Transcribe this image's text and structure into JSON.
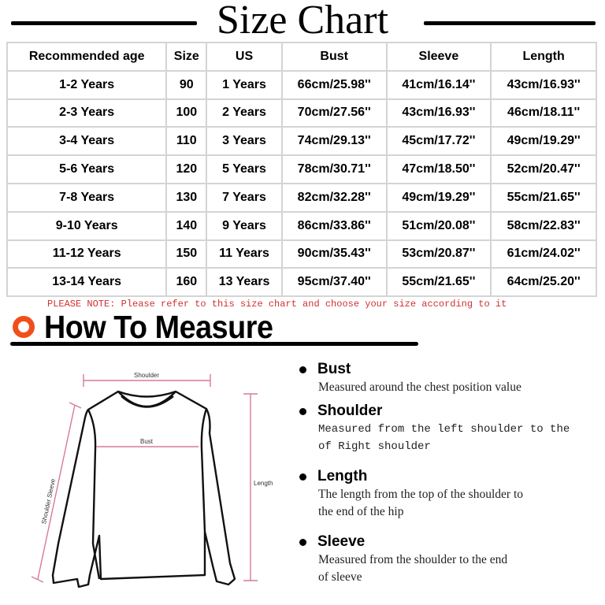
{
  "title": "Size Chart",
  "table": {
    "headers": [
      "Recommended age",
      "Size",
      "US",
      "Bust",
      "Sleeve",
      "Length"
    ],
    "rows": [
      [
        "1-2 Years",
        "90",
        "1 Years",
        "66cm/25.98''",
        "41cm/16.14''",
        "43cm/16.93''"
      ],
      [
        "2-3 Years",
        "100",
        "2 Years",
        "70cm/27.56''",
        "43cm/16.93''",
        "46cm/18.11''"
      ],
      [
        "3-4 Years",
        "110",
        "3 Years",
        "74cm/29.13''",
        "45cm/17.72''",
        "49cm/19.29''"
      ],
      [
        "5-6 Years",
        "120",
        "5 Years",
        "78cm/30.71''",
        "47cm/18.50''",
        "52cm/20.47''"
      ],
      [
        "7-8 Years",
        "130",
        "7 Years",
        "82cm/32.28''",
        "49cm/19.29''",
        "55cm/21.65''"
      ],
      [
        "9-10 Years",
        "140",
        "9 Years",
        "86cm/33.86''",
        "51cm/20.08''",
        "58cm/22.83''"
      ],
      [
        "11-12 Years",
        "150",
        "11 Years",
        "90cm/35.43''",
        "53cm/20.87''",
        "61cm/24.02''"
      ],
      [
        "13-14 Years",
        "160",
        "13 Years",
        "95cm/37.40''",
        "55cm/21.65''",
        "64cm/25.20''"
      ]
    ]
  },
  "note": "PLEASE NOTE: Please refer to this size chart and choose your size according to it",
  "how_to_measure": {
    "title": "How To Measure",
    "accent_color": "#f04f1c",
    "diagram_labels": {
      "shoulder": "Shoulder",
      "bust": "Bust",
      "length": "Length",
      "sleeve": "Shoulder Sleeve"
    },
    "items": [
      {
        "title": "Bust",
        "lines": [
          "Measured around the chest position value"
        ]
      },
      {
        "title": "Shoulder",
        "lines": [
          "Measured from the left shoulder to the",
          "of Right shoulder"
        ]
      },
      {
        "title": "Length",
        "lines": [
          "The length from the top of the shoulder to",
          "the end of the hip"
        ]
      },
      {
        "title": "Sleeve",
        "lines": [
          "Measured from the shoulder to the end",
          "of sleeve"
        ]
      }
    ]
  }
}
